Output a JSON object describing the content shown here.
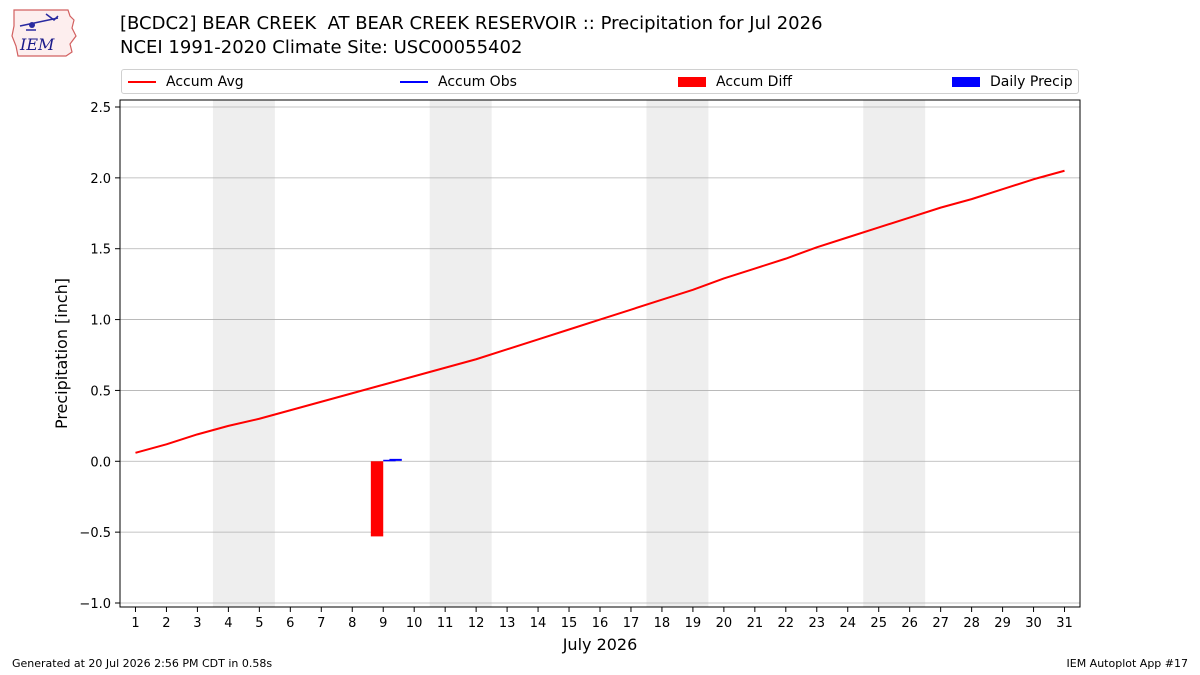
{
  "logo": {
    "text": "IEM"
  },
  "header": {
    "title_line1": "[BCDC2] BEAR CREEK  AT BEAR CREEK RESERVOIR :: Precipitation for Jul 2026",
    "title_line2": "NCEI 1991-2020 Climate Site: USC00055402"
  },
  "footer": {
    "left": "Generated at 20 Jul 2026 2:56 PM CDT in 0.58s",
    "right": "IEM Autoplot App #17"
  },
  "legend": {
    "items": [
      {
        "label": "Accum Avg",
        "color": "#ff0000",
        "kind": "line"
      },
      {
        "label": "Accum Obs",
        "color": "#0000ff",
        "kind": "line"
      },
      {
        "label": "Accum Diff",
        "color": "#ff0000",
        "kind": "box"
      },
      {
        "label": "Daily Precip",
        "color": "#0000ff",
        "kind": "box"
      }
    ]
  },
  "chart_data": {
    "type": "line",
    "xlabel": "July 2026",
    "ylabel": "Precipitation [inch]",
    "xlim": [
      0.5,
      31.5
    ],
    "ylim": [
      -1.0,
      2.5
    ],
    "yticks": [
      -1.0,
      -0.5,
      0.0,
      0.5,
      1.0,
      1.5,
      2.0,
      2.5
    ],
    "ytick_labels": [
      "−1.0",
      "−0.5",
      "0.0",
      "0.5",
      "1.0",
      "1.5",
      "2.0",
      "2.5"
    ],
    "x": [
      1,
      2,
      3,
      4,
      5,
      6,
      7,
      8,
      9,
      10,
      11,
      12,
      13,
      14,
      15,
      16,
      17,
      18,
      19,
      20,
      21,
      22,
      23,
      24,
      25,
      26,
      27,
      28,
      29,
      30,
      31
    ],
    "grid": "horizontal",
    "weekend_shading": [
      [
        3.5,
        5.5
      ],
      [
        10.5,
        12.5
      ],
      [
        17.5,
        19.5
      ],
      [
        24.5,
        26.5
      ]
    ],
    "weekend_color": "#eeeeee",
    "series": [
      {
        "name": "Accum Avg",
        "kind": "line",
        "color": "#ff0000",
        "x": [
          1,
          2,
          3,
          4,
          5,
          6,
          7,
          8,
          9,
          10,
          11,
          12,
          13,
          14,
          15,
          16,
          17,
          18,
          19,
          20,
          21,
          22,
          23,
          24,
          25,
          26,
          27,
          28,
          29,
          30,
          31
        ],
        "values": [
          0.06,
          0.12,
          0.19,
          0.25,
          0.3,
          0.36,
          0.42,
          0.48,
          0.54,
          0.6,
          0.66,
          0.72,
          0.79,
          0.86,
          0.93,
          1.0,
          1.07,
          1.14,
          1.21,
          1.29,
          1.36,
          1.43,
          1.51,
          1.58,
          1.65,
          1.72,
          1.79,
          1.85,
          1.92,
          1.99,
          2.05
        ]
      },
      {
        "name": "Accum Obs",
        "kind": "line",
        "color": "#0000ff",
        "x": [
          9.2,
          9.6
        ],
        "values": [
          0.01,
          0.01
        ]
      },
      {
        "name": "Accum Diff",
        "kind": "bar",
        "color": "#ff0000",
        "x": [
          8.8
        ],
        "values": [
          -0.53
        ],
        "bar_width": 0.4
      },
      {
        "name": "Daily Precip",
        "kind": "bar",
        "color": "#0000ff",
        "x": [
          9.2
        ],
        "values": [
          0.0
        ],
        "bar_width": 0.4
      }
    ]
  }
}
